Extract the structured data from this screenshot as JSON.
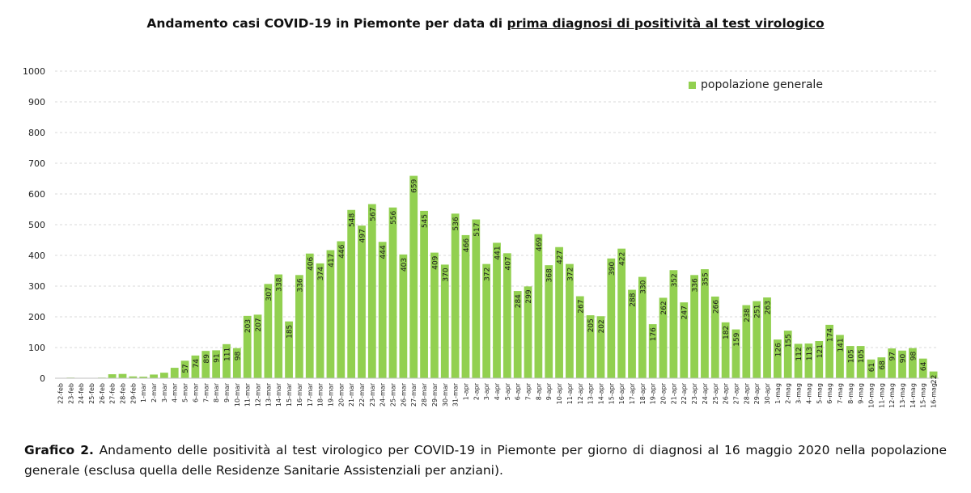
{
  "title": {
    "prefix": "Andamento casi COVID-19 in Piemonte per data di ",
    "underlined": "prima diagnosi di positività al test virologico"
  },
  "legend": {
    "label": "popolazione generale"
  },
  "caption": {
    "label": "Grafico 2.",
    "text": " Andamento delle positività al test virologico per COVID-19 in Piemonte per giorno di diagnosi al 16 maggio 2020 nella popolazione generale (esclusa quella delle Residenze Sanitarie Assistenziali per anziani)."
  },
  "colors": {
    "bar": "#92D050",
    "grid": "#d9d9d9",
    "axis": "#bfbfbf"
  },
  "chart_data": {
    "type": "bar",
    "title": "Andamento casi COVID-19 in Piemonte per data di prima diagnosi di positività al test virologico",
    "series_name": "popolazione generale",
    "ylim": [
      0,
      1000
    ],
    "yticks": [
      0,
      100,
      200,
      300,
      400,
      500,
      600,
      700,
      800,
      900,
      1000
    ],
    "grid": true,
    "legend_position": "top-right",
    "categories": [
      "22-feb",
      "23-feb",
      "24-feb",
      "25-feb",
      "26-feb",
      "27-feb",
      "28-feb",
      "29-feb",
      "1-mar",
      "2-mar",
      "3-mar",
      "4-mar",
      "5-mar",
      "6-mar",
      "7-mar",
      "8-mar",
      "9-mar",
      "10-mar",
      "11-mar",
      "12-mar",
      "13-mar",
      "14-mar",
      "15-mar",
      "16-mar",
      "17-mar",
      "18-mar",
      "19-mar",
      "20-mar",
      "21-mar",
      "22-mar",
      "23-mar",
      "24-mar",
      "25-mar",
      "26-mar",
      "27-mar",
      "28-mar",
      "29-mar",
      "30-mar",
      "31-mar",
      "1-apr",
      "2-apr",
      "3-apr",
      "4-apr",
      "5-apr",
      "6-apr",
      "7-apr",
      "8-apr",
      "9-apr",
      "10-apr",
      "11-apr",
      "12-apr",
      "13-apr",
      "14-apr",
      "15-apr",
      "16-apr",
      "17-apr",
      "18-apr",
      "19-apr",
      "20-apr",
      "21-apr",
      "22-apr",
      "23-apr",
      "24-apr",
      "25-apr",
      "26-apr",
      "27-apr",
      "28-apr",
      "29-apr",
      "30-apr",
      "1-mag",
      "2-mag",
      "3-mag",
      "4-mag",
      "5-mag",
      "6-mag",
      "7-mag",
      "8-mag",
      "9-mag",
      "10-mag",
      "11-mag",
      "12-mag",
      "13-mag",
      "14-mag",
      "15-mag",
      "16-mag"
    ],
    "values": [
      1,
      2,
      1,
      1,
      2,
      13,
      14,
      6,
      5,
      12,
      18,
      34,
      57,
      74,
      89,
      91,
      111,
      98,
      203,
      207,
      307,
      338,
      185,
      336,
      406,
      374,
      417,
      446,
      548,
      497,
      567,
      444,
      556,
      403,
      659,
      545,
      409,
      370,
      536,
      466,
      517,
      372,
      441,
      407,
      284,
      299,
      469,
      368,
      427,
      372,
      267,
      205,
      202,
      390,
      422,
      288,
      330,
      176,
      262,
      352,
      247,
      336,
      355,
      266,
      182,
      159,
      238,
      251,
      263,
      126,
      155,
      112,
      113,
      121,
      174,
      141,
      105,
      105,
      61,
      68,
      97,
      90,
      98,
      64,
      22
    ],
    "data_labels": [
      "",
      "",
      "",
      "",
      "",
      "",
      "",
      "",
      "",
      "",
      "",
      "",
      "57",
      "74",
      "89",
      "91",
      "111",
      "98",
      "203",
      "207",
      "307",
      "338",
      "185",
      "336",
      "406",
      "374",
      "417",
      "446",
      "548",
      "497",
      "567",
      "444",
      "556",
      "403",
      "659",
      "545",
      "409",
      "370",
      "536",
      "466",
      "517",
      "372",
      "441",
      "407",
      "284",
      "299",
      "469",
      "368",
      "427",
      "372",
      "267",
      "205",
      "202",
      "390",
      "422",
      "288",
      "330",
      "176",
      "262",
      "352",
      "247",
      "336",
      "355",
      "266",
      "182",
      "159",
      "238",
      "251",
      "263",
      "126",
      "155",
      "112",
      "113",
      "121",
      "174",
      "141",
      "105",
      "105",
      "61",
      "68",
      "97",
      "90",
      "98",
      "64",
      "22"
    ]
  }
}
